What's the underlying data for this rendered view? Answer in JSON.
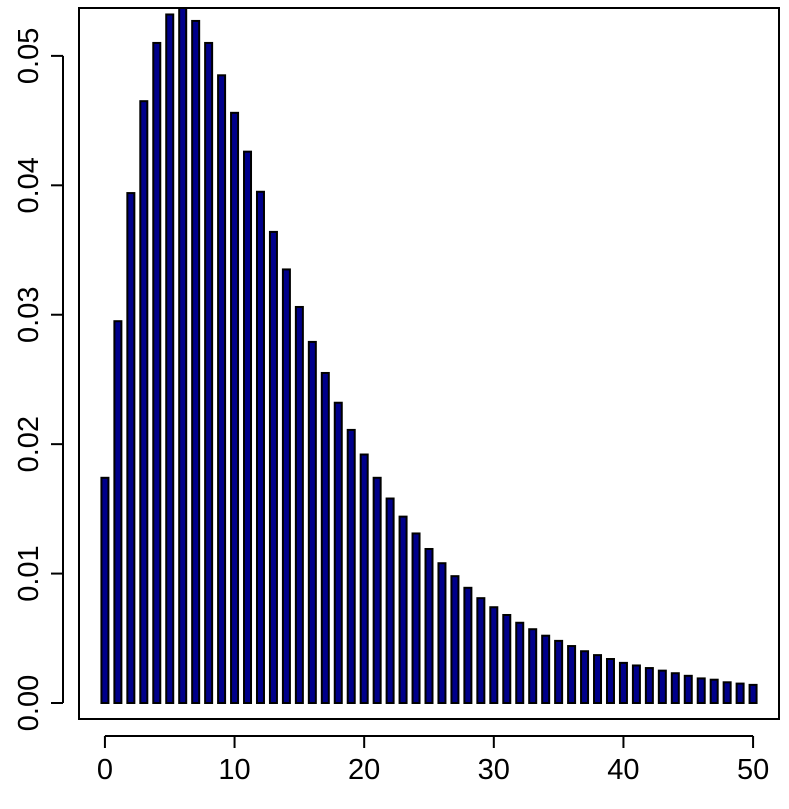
{
  "chart_data": {
    "type": "bar",
    "title": "",
    "xlabel": "",
    "ylabel": "",
    "x": [
      0,
      1,
      2,
      3,
      4,
      5,
      6,
      7,
      8,
      9,
      10,
      11,
      12,
      13,
      14,
      15,
      16,
      17,
      18,
      19,
      20,
      21,
      22,
      23,
      24,
      25,
      26,
      27,
      28,
      29,
      30,
      31,
      32,
      33,
      34,
      35,
      36,
      37,
      38,
      39,
      40,
      41,
      42,
      43,
      44,
      45,
      46,
      47,
      48,
      49,
      50
    ],
    "values": [
      0.0174,
      0.0295,
      0.0394,
      0.0465,
      0.051,
      0.0532,
      0.0537,
      0.0527,
      0.051,
      0.0485,
      0.0456,
      0.0426,
      0.0395,
      0.0364,
      0.0335,
      0.0306,
      0.0279,
      0.0255,
      0.0232,
      0.0211,
      0.0192,
      0.0174,
      0.0158,
      0.0144,
      0.0131,
      0.0119,
      0.0108,
      0.0098,
      0.0089,
      0.0081,
      0.0074,
      0.0068,
      0.0062,
      0.0057,
      0.0052,
      0.0048,
      0.0044,
      0.004,
      0.0037,
      0.0034,
      0.0031,
      0.0029,
      0.0027,
      0.0025,
      0.0023,
      0.0021,
      0.0019,
      0.0018,
      0.0016,
      0.0015,
      0.0014
    ],
    "xlim": [
      -2,
      52
    ],
    "ylim": [
      0,
      0.0537
    ],
    "x_ticks": [
      0,
      10,
      20,
      30,
      40,
      50
    ],
    "x_tick_labels": [
      "0",
      "10",
      "20",
      "30",
      "40",
      "50"
    ],
    "y_ticks": [
      0,
      0.01,
      0.02,
      0.03,
      0.04,
      0.05
    ],
    "y_tick_labels": [
      "0.00",
      "0.01",
      "0.02",
      "0.03",
      "0.04",
      "0.05"
    ],
    "bar_color": "#00008b",
    "bar_edge_color": "#000000",
    "grid": false,
    "legend": "none"
  }
}
